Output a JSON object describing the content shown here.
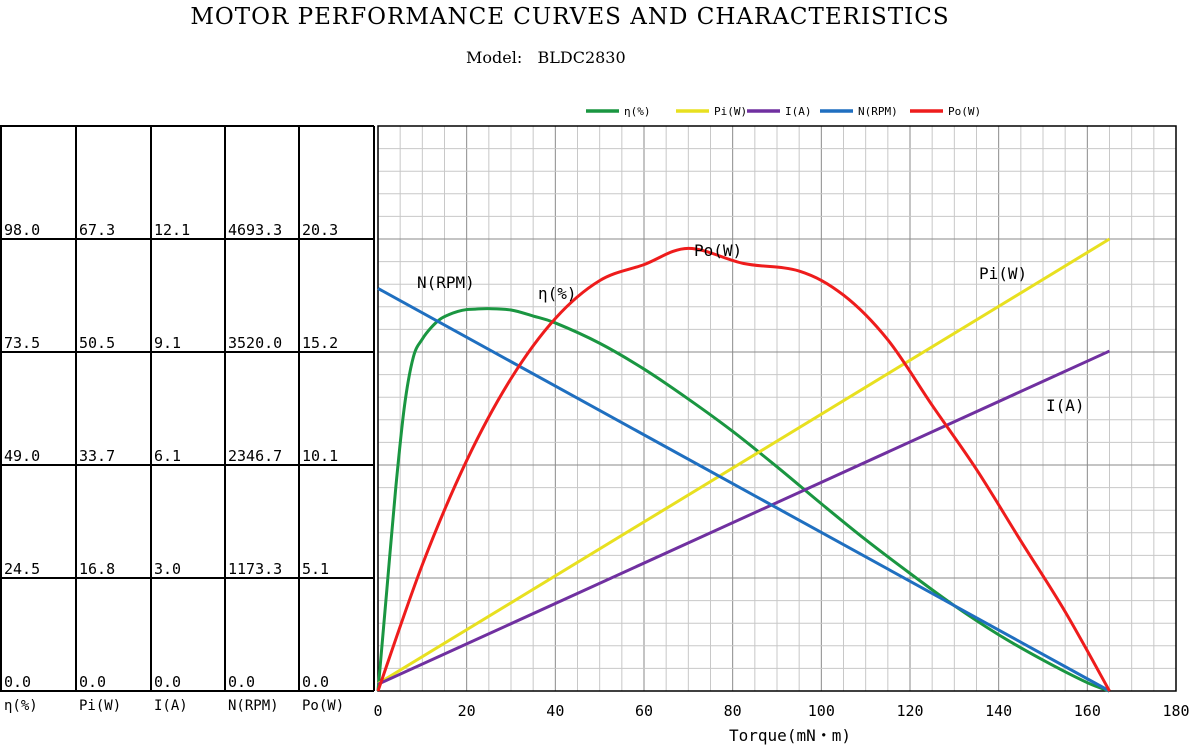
{
  "title": "MOTOR PERFORMANCE CURVES AND CHARACTERISTICS",
  "subtitle": "Model:   BLDC2830",
  "chart_data": {
    "type": "line",
    "xlabel": "Torque(mN・m)",
    "xlim": [
      0,
      180
    ],
    "x_ticks": [
      0,
      20,
      40,
      60,
      80,
      100,
      120,
      140,
      160,
      180
    ],
    "legend_position": "top-center",
    "grid": true,
    "y_axes": [
      {
        "label": "η(%)",
        "ticks": [
          "0.0",
          "24.5",
          "49.0",
          "73.5",
          "98.0"
        ]
      },
      {
        "label": "Pi(W)",
        "ticks": [
          "0.0",
          "16.8",
          "33.7",
          "50.5",
          "67.3"
        ]
      },
      {
        "label": "I(A)",
        "ticks": [
          "0.0",
          "3.0",
          "6.1",
          "9.1",
          "12.1"
        ]
      },
      {
        "label": "N(RPM)",
        "ticks": [
          "0.0",
          "1173.3",
          "2346.7",
          "3520.0",
          "4693.3"
        ]
      },
      {
        "label": "Po(W)",
        "ticks": [
          "0.0",
          "5.1",
          "10.1",
          "15.2",
          "20.3"
        ]
      }
    ],
    "series": [
      {
        "name": "η(%)",
        "color": "#1a9641",
        "label": "η(%)",
        "axis": 0,
        "x": [
          0,
          2,
          4,
          6,
          8,
          10,
          12,
          14,
          16,
          18,
          20,
          22,
          25,
          30,
          35,
          40,
          50,
          60,
          70,
          80,
          90,
          100,
          110,
          120,
          130,
          140,
          150,
          160,
          165
        ],
        "y": [
          0,
          22,
          44,
          62,
          72.5,
          76.3,
          78.8,
          80.6,
          81.6,
          82.3,
          82.7,
          82.8,
          82.9,
          82.6,
          81.3,
          79.8,
          75.4,
          69.8,
          63.3,
          56.3,
          48.6,
          40.6,
          32.8,
          25.5,
          18.5,
          12.2,
          6.7,
          1.8,
          0
        ]
      },
      {
        "name": "Pi(W)",
        "color": "#e8e020",
        "label": "Pi(W)",
        "axis": 1,
        "x": [
          0,
          165
        ],
        "y": [
          1.1,
          67.3
        ]
      },
      {
        "name": "I(A)",
        "color": "#7030a0",
        "label": "I(A)",
        "axis": 2,
        "x": [
          0,
          165
        ],
        "y": [
          0.18,
          9.1
        ]
      },
      {
        "name": "N(RPM)",
        "color": "#1f6fc0",
        "label": "N(RPM)",
        "axis": 3,
        "x": [
          0,
          165
        ],
        "y": [
          4180,
          0
        ]
      },
      {
        "name": "Po(W)",
        "color": "#ee1c1c",
        "label": "Po(W)",
        "axis": 4,
        "x": [
          0,
          10,
          20,
          30,
          40,
          50,
          60,
          70,
          82.5,
          95,
          105,
          115,
          125,
          135,
          145,
          155,
          165
        ],
        "y": [
          0,
          5.67,
          10.35,
          14.03,
          16.73,
          18.43,
          19.15,
          19.88,
          19.2,
          18.86,
          17.78,
          15.77,
          12.83,
          9.95,
          6.74,
          3.56,
          0
        ]
      }
    ]
  }
}
